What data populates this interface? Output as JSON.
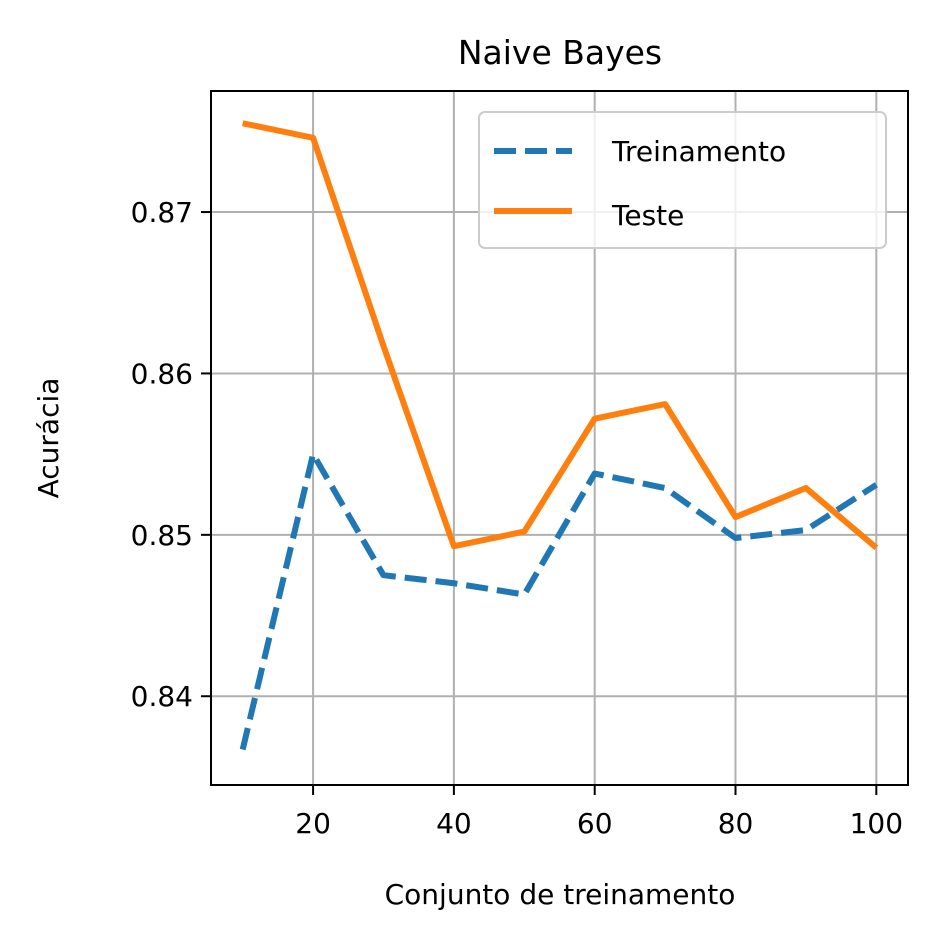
{
  "chart_data": {
    "type": "line",
    "title": "Naive Bayes",
    "xlabel": "Conjunto de treinamento",
    "ylabel": "Acurácia",
    "x": [
      10,
      20,
      30,
      40,
      50,
      60,
      70,
      80,
      90,
      100
    ],
    "xlim": [
      5.5,
      104.5
    ],
    "ylim": [
      0.8345,
      0.8775
    ],
    "xticks": [
      20,
      40,
      60,
      80,
      100
    ],
    "xtick_labels": [
      "20",
      "40",
      "60",
      "80",
      "100"
    ],
    "yticks": [
      0.84,
      0.85,
      0.86,
      0.87
    ],
    "ytick_labels": [
      "0.84",
      "0.85",
      "0.86",
      "0.87"
    ],
    "grid": true,
    "legend_position": "top-right",
    "series": [
      {
        "name": "Treinamento",
        "color": "#1f77b4",
        "style": "dashed",
        "values": [
          0.8367,
          0.855,
          0.8475,
          0.847,
          0.8463,
          0.8538,
          0.8529,
          0.8498,
          0.8503,
          0.8531
        ]
      },
      {
        "name": "Teste",
        "color": "#ff7f0e",
        "style": "solid",
        "values": [
          0.8755,
          0.8746,
          0.8617,
          0.8493,
          0.8502,
          0.8572,
          0.8581,
          0.8511,
          0.8529,
          0.8492
        ]
      }
    ]
  }
}
